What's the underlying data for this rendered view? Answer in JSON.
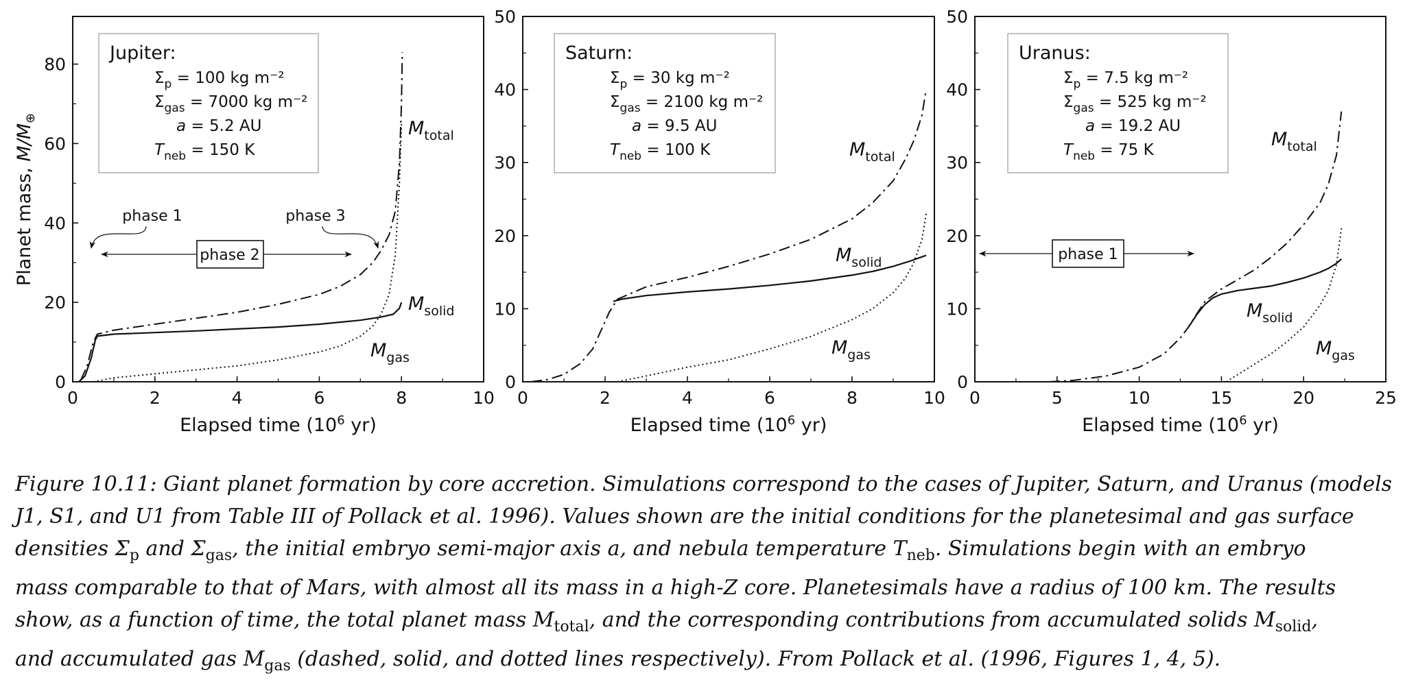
{
  "figure": {
    "ylabel_main": "Planet mass,",
    "ylabel_var": "M/M",
    "ylabel_unit": "⊕",
    "xlabel_main": "Elapsed time (10",
    "xlabel_exp": "6",
    "xlabel_unit": " yr)"
  },
  "chart_data": [
    {
      "type": "line",
      "panel": "Jupiter",
      "xlim": [
        0,
        10
      ],
      "ylim": [
        0,
        92
      ],
      "xticks": [
        0,
        2,
        4,
        6,
        8,
        10
      ],
      "yticks": [
        0,
        20,
        40,
        60,
        80
      ],
      "xlabel": "Elapsed time (10^6 yr)",
      "ylabel": "Planet mass, M/M⊕",
      "legend_box": {
        "title": "Jupiter:",
        "lines": [
          {
            "sym": "Σ",
            "sub": "p",
            "rest": " =   100 kg m⁻²"
          },
          {
            "sym": "Σ",
            "sub": "gas",
            "rest": " = 7000 kg m⁻²"
          },
          {
            "sym": "a",
            "sub": "",
            "rest": " = 5.2 AU"
          },
          {
            "sym": "T",
            "sub": "neb",
            "rest": " = 150 K"
          }
        ]
      },
      "phases": [
        {
          "label": "phase 1"
        },
        {
          "label": "phase 2"
        },
        {
          "label": "phase 3"
        }
      ],
      "series": [
        {
          "name": "M_total",
          "label_main": "M",
          "label_sub": "total",
          "style": "dashdot",
          "x": [
            0.2,
            0.35,
            0.5,
            0.6,
            1,
            2,
            3,
            4,
            5,
            6,
            6.5,
            7,
            7.3,
            7.5,
            7.7,
            7.85,
            7.95,
            8.0,
            8.02
          ],
          "y": [
            0.5,
            4,
            10,
            12,
            13,
            14.5,
            16,
            17.5,
            19.5,
            22,
            24,
            27,
            30,
            33,
            37,
            43,
            55,
            70,
            83
          ]
        },
        {
          "name": "M_solid",
          "label_main": "M",
          "label_sub": "solid",
          "style": "solid",
          "x": [
            0.15,
            0.3,
            0.45,
            0.55,
            0.6,
            1,
            2,
            3,
            4,
            5,
            6,
            7,
            7.5,
            7.8,
            7.95,
            8.0
          ],
          "y": [
            0,
            1.5,
            6,
            10.5,
            11.5,
            12,
            12.4,
            12.8,
            13.3,
            13.8,
            14.5,
            15.5,
            16.3,
            17,
            18.5,
            20
          ]
        },
        {
          "name": "M_gas",
          "label_main": "M",
          "label_sub": "gas",
          "style": "dotted",
          "x": [
            0.5,
            1,
            2,
            3,
            4,
            5,
            6,
            6.5,
            7,
            7.3,
            7.5,
            7.7,
            7.85,
            7.95,
            8.0
          ],
          "y": [
            0,
            1,
            2,
            3,
            4,
            5.5,
            7.5,
            9,
            11.5,
            14,
            17,
            22,
            32,
            50,
            65
          ]
        }
      ]
    },
    {
      "type": "line",
      "panel": "Saturn",
      "xlim": [
        0,
        10
      ],
      "ylim": [
        0,
        50
      ],
      "xticks": [
        0,
        2,
        4,
        6,
        8,
        10
      ],
      "yticks": [
        0,
        10,
        20,
        30,
        40,
        50
      ],
      "xlabel": "Elapsed time (10^6 yr)",
      "legend_box": {
        "title": "Saturn:",
        "lines": [
          {
            "sym": "Σ",
            "sub": "p",
            "rest": " =   30 kg m⁻²"
          },
          {
            "sym": "Σ",
            "sub": "gas",
            "rest": " = 2100 kg m⁻²"
          },
          {
            "sym": "a",
            "sub": "",
            "rest": " = 9.5 AU"
          },
          {
            "sym": "T",
            "sub": "neb",
            "rest": " = 100 K"
          }
        ]
      },
      "phases": [],
      "series": [
        {
          "name": "M_total",
          "label_main": "M",
          "label_sub": "total",
          "style": "dashdot",
          "x": [
            0.2,
            0.6,
            1,
            1.4,
            1.7,
            1.9,
            2.1,
            2.3,
            3,
            4,
            5,
            6,
            7,
            8,
            8.5,
            9,
            9.3,
            9.5,
            9.7,
            9.8
          ],
          "y": [
            0,
            0.3,
            1,
            2.5,
            4.5,
            7,
            9.5,
            11.3,
            13,
            14.3,
            15.8,
            17.5,
            19.5,
            22.3,
            24.5,
            27.5,
            30.5,
            33,
            36.5,
            40
          ]
        },
        {
          "name": "M_solid",
          "label_main": "M",
          "label_sub": "solid",
          "style": "solid",
          "x": [
            2.2,
            2.4,
            3,
            4,
            5,
            6,
            7,
            8,
            8.5,
            9,
            9.4,
            9.6,
            9.8
          ],
          "y": [
            11,
            11.3,
            11.8,
            12.3,
            12.7,
            13.2,
            13.8,
            14.6,
            15.1,
            15.8,
            16.5,
            16.9,
            17.3
          ]
        },
        {
          "name": "M_gas",
          "label_main": "M",
          "label_sub": "gas",
          "style": "dotted",
          "x": [
            2.3,
            3,
            4,
            5,
            6,
            7,
            8,
            8.5,
            9,
            9.3,
            9.5,
            9.7,
            9.8
          ],
          "y": [
            0,
            0.8,
            2,
            3,
            4.5,
            6.2,
            8.5,
            10,
            12.2,
            14.2,
            16.3,
            19.5,
            23
          ]
        }
      ]
    },
    {
      "type": "line",
      "panel": "Uranus",
      "xlim": [
        0,
        25
      ],
      "ylim": [
        0,
        50
      ],
      "xticks": [
        0,
        5,
        10,
        15,
        20,
        25
      ],
      "yticks": [
        0,
        10,
        20,
        30,
        40,
        50
      ],
      "xlabel": "Elapsed time (10^6 yr)",
      "legend_box": {
        "title": "Uranus:",
        "lines": [
          {
            "sym": "Σ",
            "sub": "p",
            "rest": " =   7.5 kg m⁻²"
          },
          {
            "sym": "Σ",
            "sub": "gas",
            "rest": " = 525 kg m⁻²"
          },
          {
            "sym": "a",
            "sub": "",
            "rest": " = 19.2 AU"
          },
          {
            "sym": "T",
            "sub": "neb",
            "rest": " = 75 K"
          }
        ]
      },
      "phases": [
        {
          "label": "phase 1"
        }
      ],
      "series": [
        {
          "name": "M_total",
          "label_main": "M",
          "label_sub": "total",
          "style": "dashdot",
          "x": [
            4.5,
            6,
            8,
            10,
            11.5,
            12.5,
            13,
            13.5,
            14,
            15,
            16,
            17,
            18,
            19,
            20,
            21,
            21.5,
            22,
            22.3
          ],
          "y": [
            0,
            0.2,
            0.8,
            2,
            3.8,
            6,
            7.5,
            9.3,
            11,
            12.7,
            14,
            15.3,
            17,
            19,
            21.5,
            24.5,
            27,
            31,
            37
          ]
        },
        {
          "name": "M_solid",
          "label_main": "M",
          "label_sub": "solid",
          "style": "solid",
          "x": [
            13,
            13.5,
            14,
            14.5,
            15,
            16,
            17,
            18,
            19,
            20,
            21,
            21.5,
            22,
            22.3
          ],
          "y": [
            7.5,
            9.2,
            10.6,
            11.5,
            12,
            12.5,
            12.8,
            13.1,
            13.6,
            14.2,
            15,
            15.5,
            16.2,
            16.8
          ]
        },
        {
          "name": "M_gas",
          "label_main": "M",
          "label_sub": "gas",
          "style": "dotted",
          "x": [
            15.3,
            16,
            17,
            18,
            19,
            20,
            21,
            21.5,
            22,
            22.3
          ],
          "y": [
            0,
            1,
            2.4,
            3.8,
            5.5,
            7.5,
            10.5,
            12.5,
            16,
            21
          ]
        }
      ]
    }
  ],
  "caption": {
    "lines": [
      [
        {
          "t": "Figure 10.11: Giant planet formation by core accretion. Simulations correspond to the cases of Jupiter, Saturn, and Uranus (models"
        }
      ],
      [
        {
          "t": "J1, S1, and U1 from Table III of Pollack et al. 1996).  Values shown are the initial conditions for the planetesimal and gas surface"
        }
      ],
      [
        {
          "t": "densities Σ"
        },
        {
          "s": "p"
        },
        {
          "t": " and Σ"
        },
        {
          "s": "gas"
        },
        {
          "t": ", the initial embryo semi-major axis a, and nebula temperature T"
        },
        {
          "s": "neb"
        },
        {
          "t": ".  Simulations begin with an embryo"
        }
      ],
      [
        {
          "t": "mass comparable to that of Mars, with almost all its mass in a high-Z core.  Planetesimals have a radius of 100 km.  The results"
        }
      ],
      [
        {
          "t": "show, as a function of time, the total planet mass M"
        },
        {
          "s": "total"
        },
        {
          "t": ", and the corresponding contributions from accumulated solids M"
        },
        {
          "s": "solid"
        },
        {
          "t": ","
        }
      ],
      [
        {
          "t": "and accumulated gas M"
        },
        {
          "s": "gas"
        },
        {
          "t": " (dashed, solid, and dotted lines respectively). From Pollack et al. (1996, Figures 1, 4, 5)."
        }
      ]
    ]
  }
}
